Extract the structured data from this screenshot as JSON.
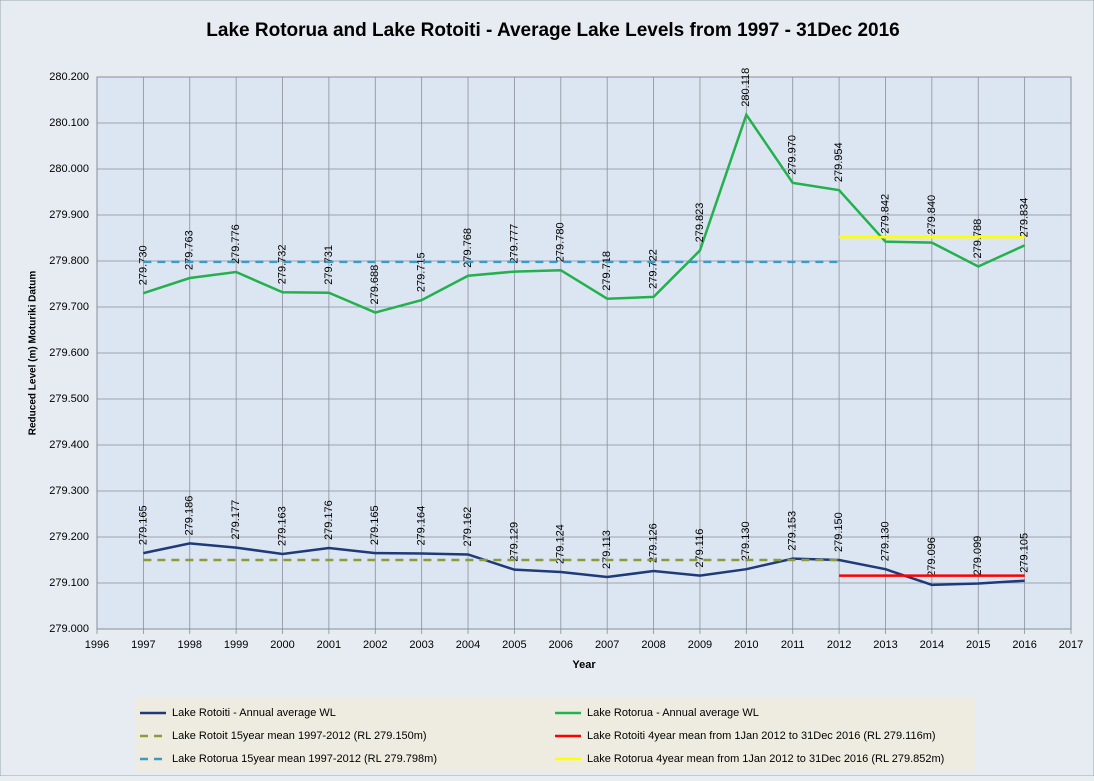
{
  "chart_data": {
    "type": "line",
    "title": "Lake Rotorua and Lake Rotoiti  - Average Lake Levels  from 1997 - 31Dec 2016",
    "x_label": "Year",
    "y_label": "Reduced Level (m) Moturiki Datum",
    "xlim": [
      1996,
      2017
    ],
    "xticks": [
      1996,
      1997,
      1998,
      1999,
      2000,
      2001,
      2002,
      2003,
      2004,
      2005,
      2006,
      2007,
      2008,
      2009,
      2010,
      2011,
      2012,
      2013,
      2014,
      2015,
      2016,
      2017
    ],
    "ylim": [
      279.0,
      280.2
    ],
    "yticks": [
      {
        "value": 279.0,
        "label": "279.000"
      },
      {
        "value": 279.1,
        "label": "279.100"
      },
      {
        "value": 279.2,
        "label": "279.200"
      },
      {
        "value": 279.3,
        "label": "279.300"
      },
      {
        "value": 279.4,
        "label": "279.400"
      },
      {
        "value": 279.5,
        "label": "279.500"
      },
      {
        "value": 279.6,
        "label": "279.600"
      },
      {
        "value": 279.7,
        "label": "279.700"
      },
      {
        "value": 279.8,
        "label": "279.800"
      },
      {
        "value": 279.9,
        "label": "279.900"
      },
      {
        "value": 280.0,
        "label": "280.000"
      },
      {
        "value": 280.1,
        "label": "280.100"
      },
      {
        "value": 280.2,
        "label": "280.200"
      }
    ],
    "grid": true,
    "series": [
      {
        "name": "Lake Rotoiti - Annual average WL",
        "color": "#1f3a78",
        "dash": false,
        "x": [
          1997,
          1998,
          1999,
          2000,
          2001,
          2002,
          2003,
          2004,
          2005,
          2006,
          2007,
          2008,
          2009,
          2010,
          2011,
          2012,
          2013,
          2014,
          2015,
          2016
        ],
        "values": [
          279.165,
          279.186,
          279.177,
          279.163,
          279.176,
          279.165,
          279.164,
          279.162,
          279.129,
          279.124,
          279.113,
          279.126,
          279.116,
          279.13,
          279.153,
          279.15,
          279.13,
          279.096,
          279.099,
          279.105
        ],
        "value_labels": [
          "279.165",
          "279.186",
          "279.177",
          "279.163",
          "279.176",
          "279.165",
          "279.164",
          "279.162",
          "279.129",
          "279.124",
          "279.113",
          "279.126",
          "279.116",
          "279.130",
          "279.153",
          "279.150",
          "279.130",
          "279.096",
          "279.099",
          "279.105"
        ]
      },
      {
        "name": "Lake Rotorua - Annual average WL",
        "color": "#22b14c",
        "dash": false,
        "x": [
          1997,
          1998,
          1999,
          2000,
          2001,
          2002,
          2003,
          2004,
          2005,
          2006,
          2007,
          2008,
          2009,
          2010,
          2011,
          2012,
          2013,
          2014,
          2015,
          2016
        ],
        "values": [
          279.73,
          279.763,
          279.776,
          279.732,
          279.731,
          279.688,
          279.715,
          279.768,
          279.777,
          279.78,
          279.718,
          279.722,
          279.823,
          280.118,
          279.97,
          279.954,
          279.842,
          279.84,
          279.788,
          279.834
        ],
        "value_labels": [
          "279.730",
          "279.763",
          "279.776",
          "279.732",
          "279.731",
          "279.688",
          "279.715",
          "279.768",
          "279.777",
          "279.780",
          "279.718",
          "279.722",
          "279.823",
          "280.118",
          "279.970",
          "279.954",
          "279.842",
          "279.840",
          "279.788",
          "279.834"
        ]
      },
      {
        "name": "Lake Rotoit 15year mean 1997-2012 (RL 279.150m)",
        "color": "#8b9a3b",
        "dash": true,
        "x": [
          1997,
          2012
        ],
        "values": [
          279.15,
          279.15
        ]
      },
      {
        "name": "Lake Rotoiti 4year mean from 1Jan 2012 to 31Dec 2016 (RL 279.116m)",
        "color": "#ff0000",
        "dash": false,
        "x": [
          2012,
          2016
        ],
        "values": [
          279.116,
          279.116
        ]
      },
      {
        "name": "Lake Rotorua 15year mean 1997-2012 (RL 279.798m)",
        "color": "#3a9cc4",
        "dash": true,
        "x": [
          1997,
          2012
        ],
        "values": [
          279.798,
          279.798
        ]
      },
      {
        "name": "Lake Rotorua 4year mean from 1Jan 2012 to 31Dec 2016 (RL 279.852m)",
        "color": "#ffff00",
        "dash": false,
        "x": [
          2012,
          2016
        ],
        "values": [
          279.852,
          279.852
        ]
      }
    ]
  }
}
